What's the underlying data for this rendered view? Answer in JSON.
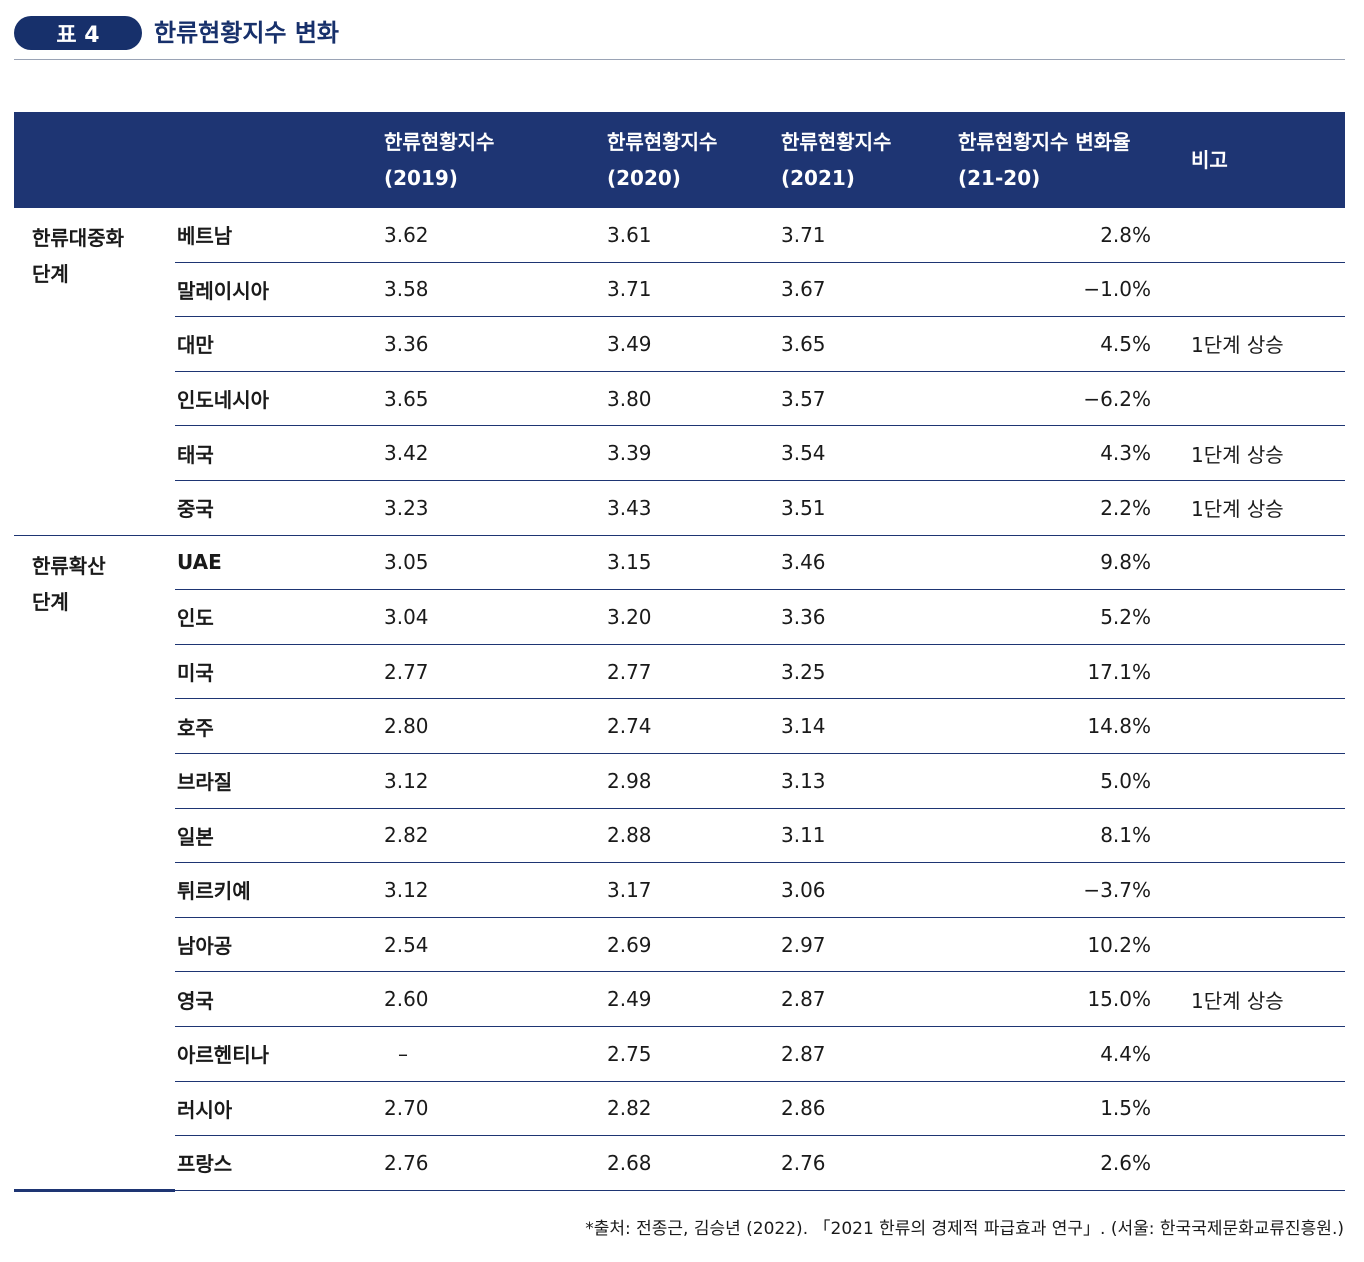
{
  "header": {
    "badge": "표 4",
    "title": "한류현황지수 변화"
  },
  "table": {
    "columns": [
      "",
      "",
      "한류현황지수\n(2019)",
      "한류현황지수\n(2020)",
      "한류현황지수\n(2021)",
      "한류현황지수 변화율\n(21-20)",
      "비고"
    ],
    "groups": [
      {
        "label": "한류대중화\n단계",
        "rows": [
          {
            "country": "베트남",
            "v2019": "3.62",
            "v2020": "3.61",
            "v2021": "3.71",
            "rate": "2.8%",
            "note": ""
          },
          {
            "country": "말레이시아",
            "v2019": "3.58",
            "v2020": "3.71",
            "v2021": "3.67",
            "rate": "−1.0%",
            "note": ""
          },
          {
            "country": "대만",
            "v2019": "3.36",
            "v2020": "3.49",
            "v2021": "3.65",
            "rate": "4.5%",
            "note": "1단계 상승"
          },
          {
            "country": "인도네시아",
            "v2019": "3.65",
            "v2020": "3.80",
            "v2021": "3.57",
            "rate": "−6.2%",
            "note": ""
          },
          {
            "country": "태국",
            "v2019": "3.42",
            "v2020": "3.39",
            "v2021": "3.54",
            "rate": "4.3%",
            "note": "1단계 상승"
          },
          {
            "country": "중국",
            "v2019": "3.23",
            "v2020": "3.43",
            "v2021": "3.51",
            "rate": "2.2%",
            "note": "1단계 상승"
          }
        ]
      },
      {
        "label": "한류확산\n단계",
        "rows": [
          {
            "country": "UAE",
            "v2019": "3.05",
            "v2020": "3.15",
            "v2021": "3.46",
            "rate": "9.8%",
            "note": ""
          },
          {
            "country": "인도",
            "v2019": "3.04",
            "v2020": "3.20",
            "v2021": "3.36",
            "rate": "5.2%",
            "note": ""
          },
          {
            "country": "미국",
            "v2019": "2.77",
            "v2020": "2.77",
            "v2021": "3.25",
            "rate": "17.1%",
            "note": ""
          },
          {
            "country": "호주",
            "v2019": "2.80",
            "v2020": "2.74",
            "v2021": "3.14",
            "rate": "14.8%",
            "note": ""
          },
          {
            "country": "브라질",
            "v2019": "3.12",
            "v2020": "2.98",
            "v2021": "3.13",
            "rate": "5.0%",
            "note": ""
          },
          {
            "country": "일본",
            "v2019": "2.82",
            "v2020": "2.88",
            "v2021": "3.11",
            "rate": "8.1%",
            "note": ""
          },
          {
            "country": "튀르키예",
            "v2019": "3.12",
            "v2020": "3.17",
            "v2021": "3.06",
            "rate": "−3.7%",
            "note": ""
          },
          {
            "country": "남아공",
            "v2019": "2.54",
            "v2020": "2.69",
            "v2021": "2.97",
            "rate": "10.2%",
            "note": ""
          },
          {
            "country": "영국",
            "v2019": "2.60",
            "v2020": "2.49",
            "v2021": "2.87",
            "rate": "15.0%",
            "note": "1단계 상승"
          },
          {
            "country": "아르헨티나",
            "v2019": "–",
            "v2020": "2.75",
            "v2021": "2.87",
            "rate": "4.4%",
            "note": ""
          },
          {
            "country": "러시아",
            "v2019": "2.70",
            "v2020": "2.82",
            "v2021": "2.86",
            "rate": "1.5%",
            "note": ""
          },
          {
            "country": "프랑스",
            "v2019": "2.76",
            "v2020": "2.68",
            "v2021": "2.76",
            "rate": "2.6%",
            "note": ""
          }
        ]
      }
    ]
  },
  "source": "*출처: 전종근, 김승년 (2022). 「2021 한류의 경제적 파급효과 연구」. (서울: 한국국제문화교류진흥원.)",
  "colors": {
    "header_bg": "#1e3573",
    "title": "#17306b"
  }
}
